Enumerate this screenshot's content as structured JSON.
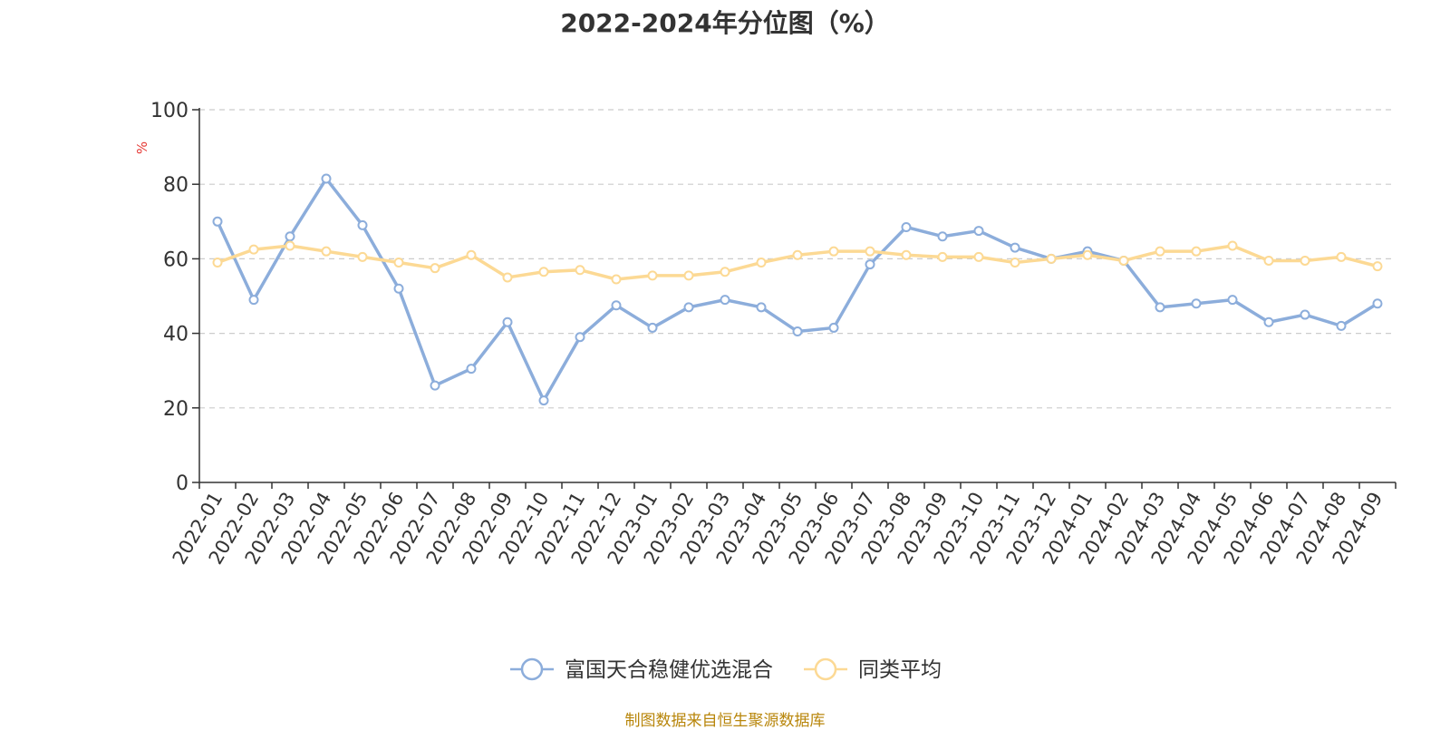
{
  "chart_data": {
    "type": "line",
    "title": "2022-2024年分位图（%）",
    "y_unit": "%",
    "ylim": [
      0,
      100
    ],
    "yticks": [
      0,
      20,
      40,
      60,
      80,
      100
    ],
    "grid": "horizontal dashed",
    "legend_position": "bottom-center",
    "categories": [
      "2022-01",
      "2022-02",
      "2022-03",
      "2022-04",
      "2022-05",
      "2022-06",
      "2022-07",
      "2022-08",
      "2022-09",
      "2022-10",
      "2022-11",
      "2022-12",
      "2023-01",
      "2023-02",
      "2023-03",
      "2023-04",
      "2023-05",
      "2023-06",
      "2023-07",
      "2023-08",
      "2023-09",
      "2023-10",
      "2023-11",
      "2023-12",
      "2024-01",
      "2024-02",
      "2024-03",
      "2024-04",
      "2024-05",
      "2024-06",
      "2024-07",
      "2024-08",
      "2024-09"
    ],
    "series": [
      {
        "name": "富国天合稳健优选混合",
        "color": "#8caddb",
        "values": [
          70,
          49,
          66,
          81.5,
          69,
          52,
          26,
          30.5,
          43,
          22,
          39,
          47.5,
          41.5,
          47,
          49,
          47,
          40.5,
          41.5,
          58.5,
          68.5,
          66,
          67.5,
          63,
          60,
          62,
          59.5,
          47,
          48,
          49,
          43,
          45,
          42,
          48
        ]
      },
      {
        "name": "同类平均",
        "color": "#fcd994",
        "values": [
          59,
          62.5,
          63.5,
          62,
          60.5,
          59,
          57.5,
          61,
          55,
          56.5,
          57,
          54.5,
          55.5,
          55.5,
          56.5,
          59,
          61,
          62,
          62,
          61,
          60.5,
          60.5,
          59,
          60,
          61,
          59.5,
          62,
          62,
          63.5,
          59.5,
          59.5,
          60.5,
          58
        ]
      }
    ]
  },
  "source_text": "制图数据来自恒生聚源数据库"
}
